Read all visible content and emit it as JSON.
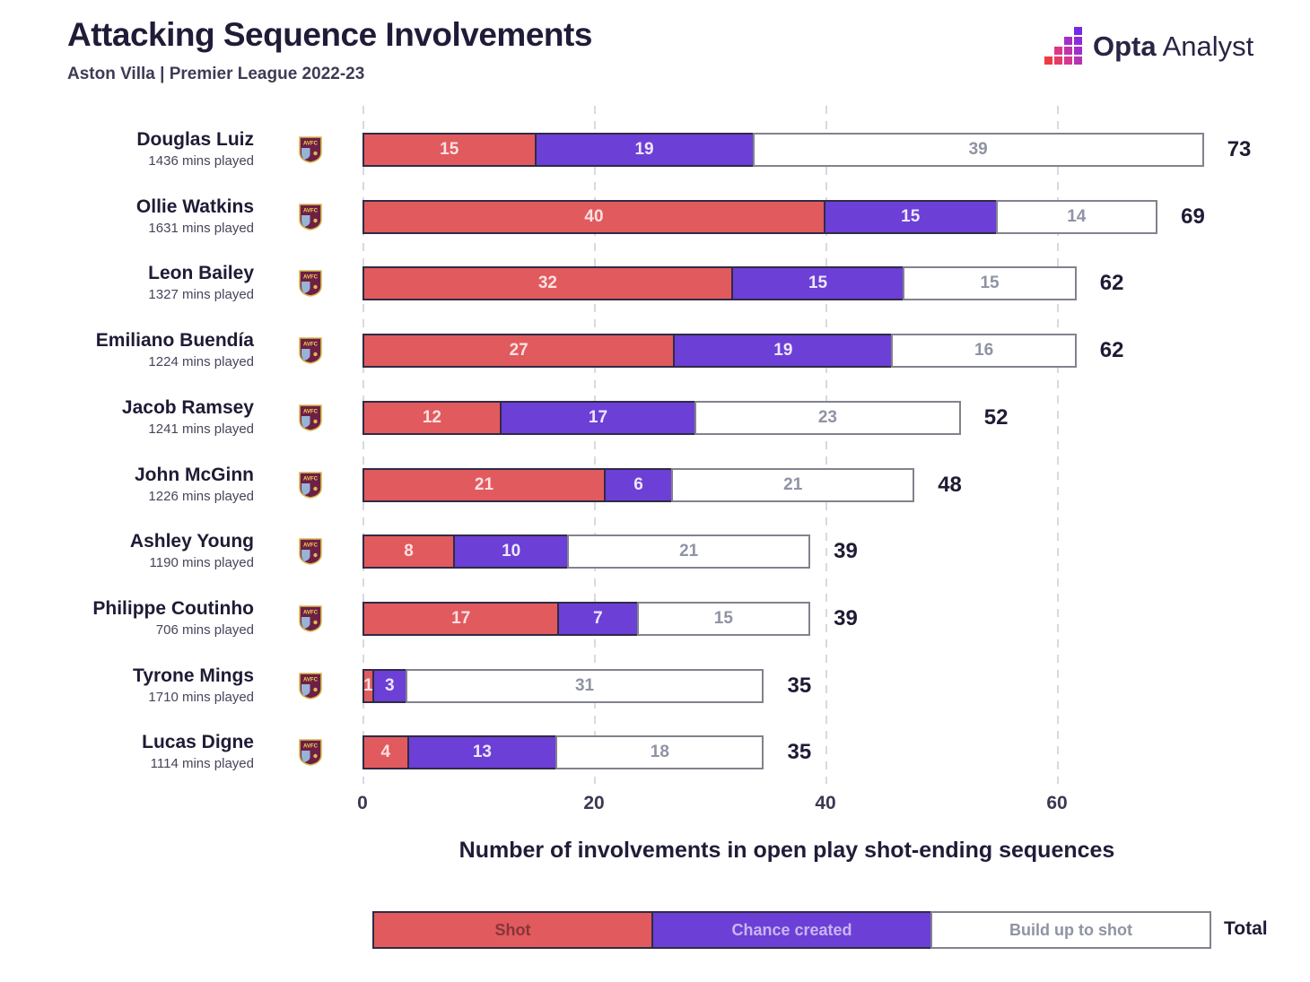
{
  "header": {
    "title": "Attacking Sequence Involvements",
    "subtitle": "Aston Villa | Premier League 2022-23"
  },
  "logo": {
    "brand_bold": "Opta",
    "brand_regular": "Analyst"
  },
  "chart_data": {
    "type": "bar",
    "orientation": "horizontal",
    "stacked": true,
    "title": "Attacking Sequence Involvements",
    "subtitle": "Aston Villa | Premier League 2022-23",
    "xlabel": "Number of involvements in open play shot-ending sequences",
    "x_ticks": [
      0,
      20,
      40,
      60
    ],
    "xlim": [
      0,
      75
    ],
    "grid": "dashed-vertical",
    "legend_position": "bottom",
    "series": [
      "Shot",
      "Chance created",
      "Build up to shot"
    ],
    "colors": {
      "shot": "#e15a5e",
      "chance_created": "#6c3fd6",
      "build_up_to_shot": "#ffffff"
    },
    "badge": "AVFC",
    "players": [
      {
        "name": "Douglas Luiz",
        "mins_played": "1436 mins played",
        "shot": 15,
        "chance_created": 19,
        "build_up": 39,
        "total": 73
      },
      {
        "name": "Ollie Watkins",
        "mins_played": "1631 mins played",
        "shot": 40,
        "chance_created": 15,
        "build_up": 14,
        "total": 69
      },
      {
        "name": "Leon Bailey",
        "mins_played": "1327 mins played",
        "shot": 32,
        "chance_created": 15,
        "build_up": 15,
        "total": 62
      },
      {
        "name": "Emiliano Buendía",
        "mins_played": "1224 mins played",
        "shot": 27,
        "chance_created": 19,
        "build_up": 16,
        "total": 62
      },
      {
        "name": "Jacob Ramsey",
        "mins_played": "1241 mins played",
        "shot": 12,
        "chance_created": 17,
        "build_up": 23,
        "total": 52
      },
      {
        "name": "John McGinn",
        "mins_played": "1226 mins played",
        "shot": 21,
        "chance_created": 6,
        "build_up": 21,
        "total": 48
      },
      {
        "name": "Ashley Young",
        "mins_played": "1190 mins played",
        "shot": 8,
        "chance_created": 10,
        "build_up": 21,
        "total": 39
      },
      {
        "name": "Philippe Coutinho",
        "mins_played": "706 mins played",
        "shot": 17,
        "chance_created": 7,
        "build_up": 15,
        "total": 39
      },
      {
        "name": "Tyrone Mings",
        "mins_played": "1710 mins played",
        "shot": 1,
        "chance_created": 3,
        "build_up": 31,
        "total": 35
      },
      {
        "name": "Lucas Digne",
        "mins_played": "1114 mins played",
        "shot": 4,
        "chance_created": 13,
        "build_up": 18,
        "total": 35
      }
    ]
  },
  "legend": {
    "shot": "Shot",
    "chance_created": "Chance created",
    "build_up_to_shot": "Build up to shot",
    "total": "Total"
  }
}
